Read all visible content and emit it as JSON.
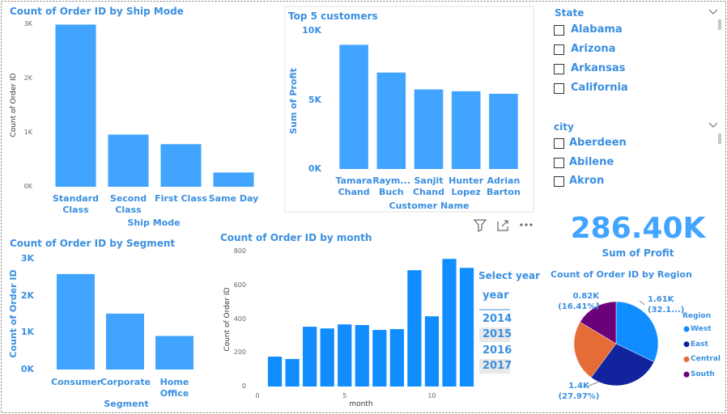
{
  "chart_data": [
    {
      "type": "bar",
      "title": "Count of Order ID by Ship Mode",
      "x_label": "Ship Mode",
      "y_label": "Count of Order ID",
      "categories": [
        "Standard Class",
        "Second Class",
        "First Class",
        "Same Day"
      ],
      "values": [
        2994,
        964,
        787,
        264
      ],
      "color": "#41a4ff",
      "ylim": [
        0,
        3000
      ],
      "yticks": [
        {
          "value": 0,
          "label": "0K"
        },
        {
          "value": 1000,
          "label": "1K"
        },
        {
          "value": 2000,
          "label": "2K"
        },
        {
          "value": 3000,
          "label": "3K"
        }
      ],
      "grid": false
    },
    {
      "type": "bar",
      "title": "Top 5 customers",
      "x_label": "Customer Name",
      "y_label": "Sum of Profit",
      "categories": [
        "Tamara Chand",
        "Raym... Buch",
        "Sanjit Chand",
        "Hunter Lopez",
        "Adrian Barton"
      ],
      "values": [
        8981,
        6976,
        5757,
        5622,
        5444
      ],
      "color": "#41a4ff",
      "ylim": [
        0,
        10000
      ],
      "yticks": [
        {
          "value": 0,
          "label": "0K"
        },
        {
          "value": 5000,
          "label": "5K"
        },
        {
          "value": 10000,
          "label": "10K"
        }
      ],
      "grid": false
    },
    {
      "type": "bar",
      "title": "Count of Order ID by Segment",
      "x_label": "Segment",
      "y_label": "Count of Order ID",
      "categories": [
        "Consumer",
        "Corporate",
        "Home Office"
      ],
      "values": [
        2586,
        1514,
        909
      ],
      "color": "#41a4ff",
      "ylim": [
        0,
        3000
      ],
      "yticks": [
        {
          "value": 0,
          "label": "0K"
        },
        {
          "value": 1000,
          "label": "1K"
        },
        {
          "value": 2000,
          "label": "2K"
        },
        {
          "value": 3000,
          "label": "3K"
        }
      ],
      "grid": false
    },
    {
      "type": "bar",
      "title": "Count of Order ID by month",
      "x_label": "month",
      "y_label": "Count of Order ID",
      "x": [
        1,
        2,
        3,
        4,
        5,
        6,
        7,
        8,
        9,
        10,
        11,
        12
      ],
      "values": [
        177,
        163,
        354,
        344,
        368,
        364,
        335,
        340,
        689,
        416,
        756,
        703
      ],
      "color": "#118dff",
      "xlim": [
        0,
        12.3
      ],
      "xticks": [
        0,
        5,
        10
      ],
      "ylim": [
        0,
        800
      ],
      "yticks": [
        0,
        200,
        400,
        600,
        800
      ],
      "grid": false
    },
    {
      "type": "pie",
      "title": "Count of Order ID by Region",
      "legend_title": "Region",
      "legend": "right",
      "categories": [
        "West",
        "East",
        "Central",
        "South"
      ],
      "values": [
        1611,
        1401,
        1175,
        822
      ],
      "value_labels": [
        "1.61K (32.1...)",
        "1.4K (27.97%)",
        null,
        "0.82K (16.41%)"
      ],
      "colors": [
        "#118dff",
        "#12239e",
        "#e66c37",
        "#6b007b"
      ]
    }
  ],
  "kpi_card": {
    "value": "286.40K",
    "label": "Sum of Profit"
  },
  "state_slicer": {
    "title": "State",
    "items": [
      "Alabama",
      "Arizona",
      "Arkansas",
      "California"
    ]
  },
  "city_slicer": {
    "title": "city",
    "items": [
      "Aberdeen",
      "Abilene",
      "Akron"
    ]
  },
  "year_slicer": {
    "title": "Select year",
    "header": "year",
    "items": [
      "2014",
      "2015",
      "2016",
      "2017"
    ]
  }
}
